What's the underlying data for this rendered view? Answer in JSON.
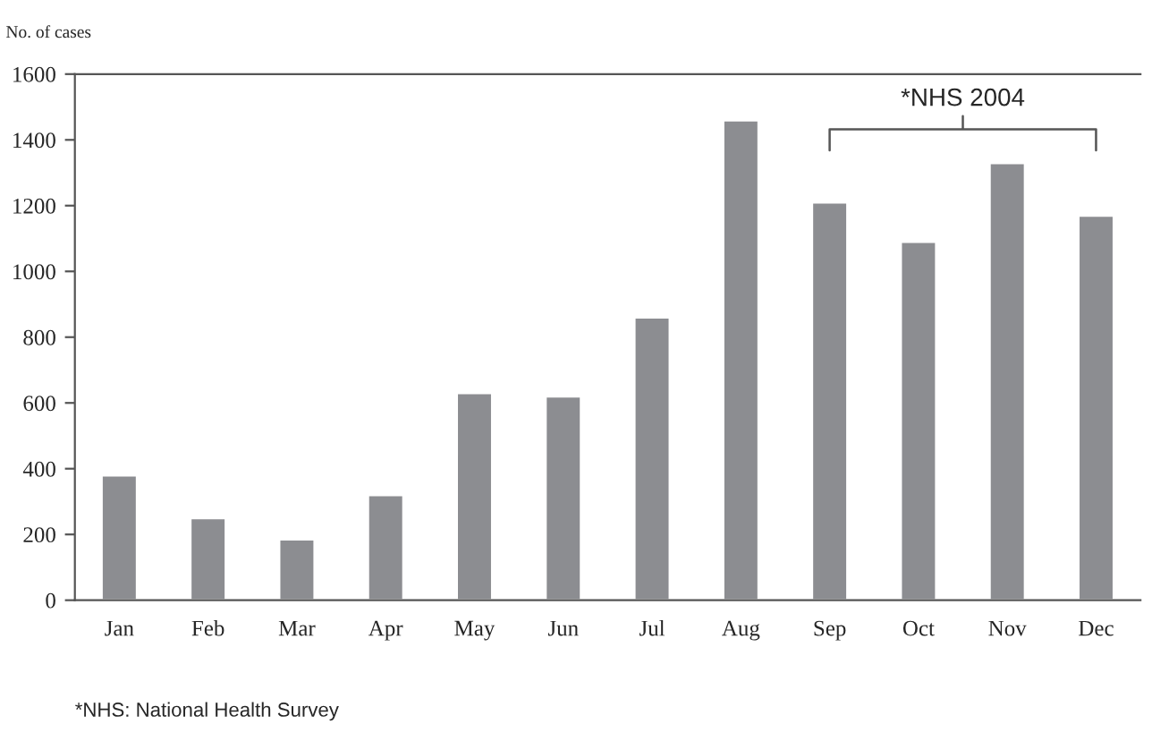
{
  "chart_data": {
    "type": "bar",
    "ylabel": "No. of cases",
    "categories": [
      "Jan",
      "Feb",
      "Mar",
      "Apr",
      "May",
      "Jun",
      "Jul",
      "Aug",
      "Sep",
      "Oct",
      "Nov",
      "Dec"
    ],
    "values": [
      380,
      250,
      185,
      320,
      630,
      620,
      860,
      1460,
      1210,
      1090,
      1330,
      1170
    ],
    "color": "#8c8d91",
    "ylim": [
      0,
      1600
    ],
    "yticks": [
      0,
      200,
      400,
      600,
      800,
      1000,
      1200,
      1400,
      1600
    ],
    "grid": false,
    "annotations": [
      "*NHS 2004",
      "*NHS: National Health Survey"
    ]
  }
}
